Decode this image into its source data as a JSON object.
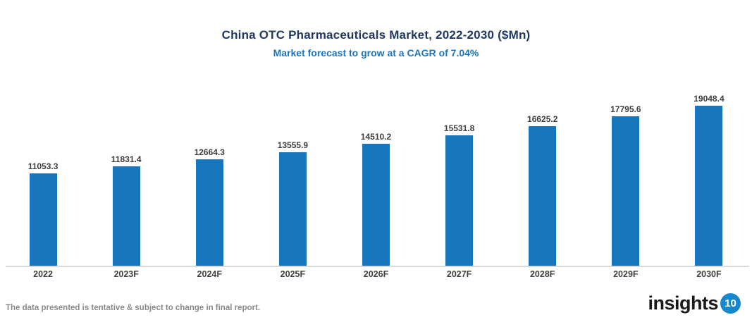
{
  "header": {
    "title": "China OTC Pharmaceuticals Market, 2022-2030 ($Mn)",
    "subtitle": "Market forecast to grow at a CAGR of 7.04%"
  },
  "chart_data": {
    "type": "bar",
    "title": "China OTC Pharmaceuticals Market, 2022-2030 ($Mn)",
    "subtitle": "Market forecast to grow at a CAGR of 7.04%",
    "categories": [
      "2022",
      "2023F",
      "2024F",
      "2025F",
      "2026F",
      "2027F",
      "2028F",
      "2029F",
      "2030F"
    ],
    "values": [
      11053.3,
      11831.4,
      12664.3,
      13555.9,
      14510.2,
      15531.8,
      16625.2,
      17795.6,
      19048.4
    ],
    "value_labels": [
      "11053.3",
      "11831.4",
      "12664.3",
      "13555.9",
      "14510.2",
      "15531.8",
      "16625.2",
      "17795.6",
      "19048.4"
    ],
    "xlabel": "",
    "ylabel": "",
    "ylim": [
      0,
      19048.4
    ],
    "grid": false,
    "legend": false,
    "data_labels_shown": true,
    "cagr": "7.04%"
  },
  "footer": {
    "disclaimer": "The data presented is tentative & subject to change in final report.",
    "logo_text": "insights",
    "logo_badge": "10"
  },
  "colors": {
    "background": "#FFFFFF",
    "title": "#1F3864",
    "subtitle": "#1B75BC",
    "bar": "#1776BE",
    "axis_line": "#D9D9D9",
    "data_label": "#404040",
    "tick_label": "#404040",
    "disclaimer": "#8A8A8A",
    "logo_text": "#1A1A1A",
    "logo_badge_bg": "#1887C9",
    "logo_badge_text": "#FFFFFF"
  }
}
